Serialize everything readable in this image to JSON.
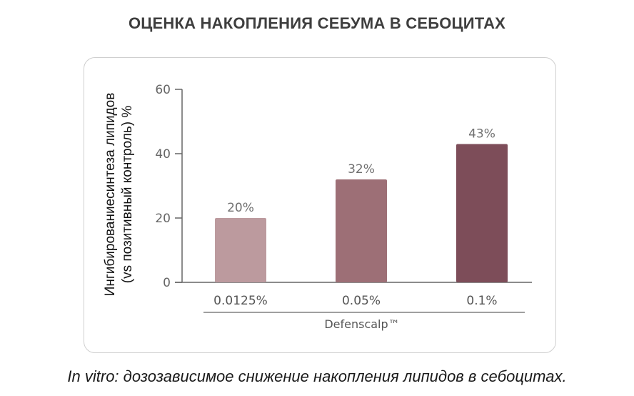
{
  "header": {
    "title": "ОЦЕНКА НАКОПЛЕНИЯ СЕБУМА В СЕБОЦИТАХ"
  },
  "caption": "In vitro: дозозависимое снижение накопления липидов в себоцитах.",
  "colors": {
    "bar_light": "#bc9a9e",
    "bar_mid": "#9d6f76",
    "bar_dark": "#7d4d59",
    "axis": "#666666",
    "card_border": "#cfcfcf"
  },
  "chart_data": {
    "type": "bar",
    "title": "ОЦЕНКА НАКОПЛЕНИЯ СЕБУМА В СЕБОЦИТАХ",
    "ylabel_lines": [
      "Ингибированиесинтеза липидов",
      "(vs позитивный контроль) %"
    ],
    "xlabel": "Defenscalp™",
    "categories": [
      "0.0125%",
      "0.05%",
      "0.1%"
    ],
    "values": [
      20,
      32,
      43
    ],
    "data_labels": [
      "20%",
      "32%",
      "43%"
    ],
    "bar_colors": [
      "#bc9a9e",
      "#9d6f76",
      "#7d4d59"
    ],
    "ylim": [
      0,
      60
    ],
    "yticks": [
      0,
      20,
      40,
      60
    ],
    "ytick_labels": [
      "0",
      "20",
      "40",
      "60"
    ],
    "grid": false,
    "legend": "none"
  }
}
